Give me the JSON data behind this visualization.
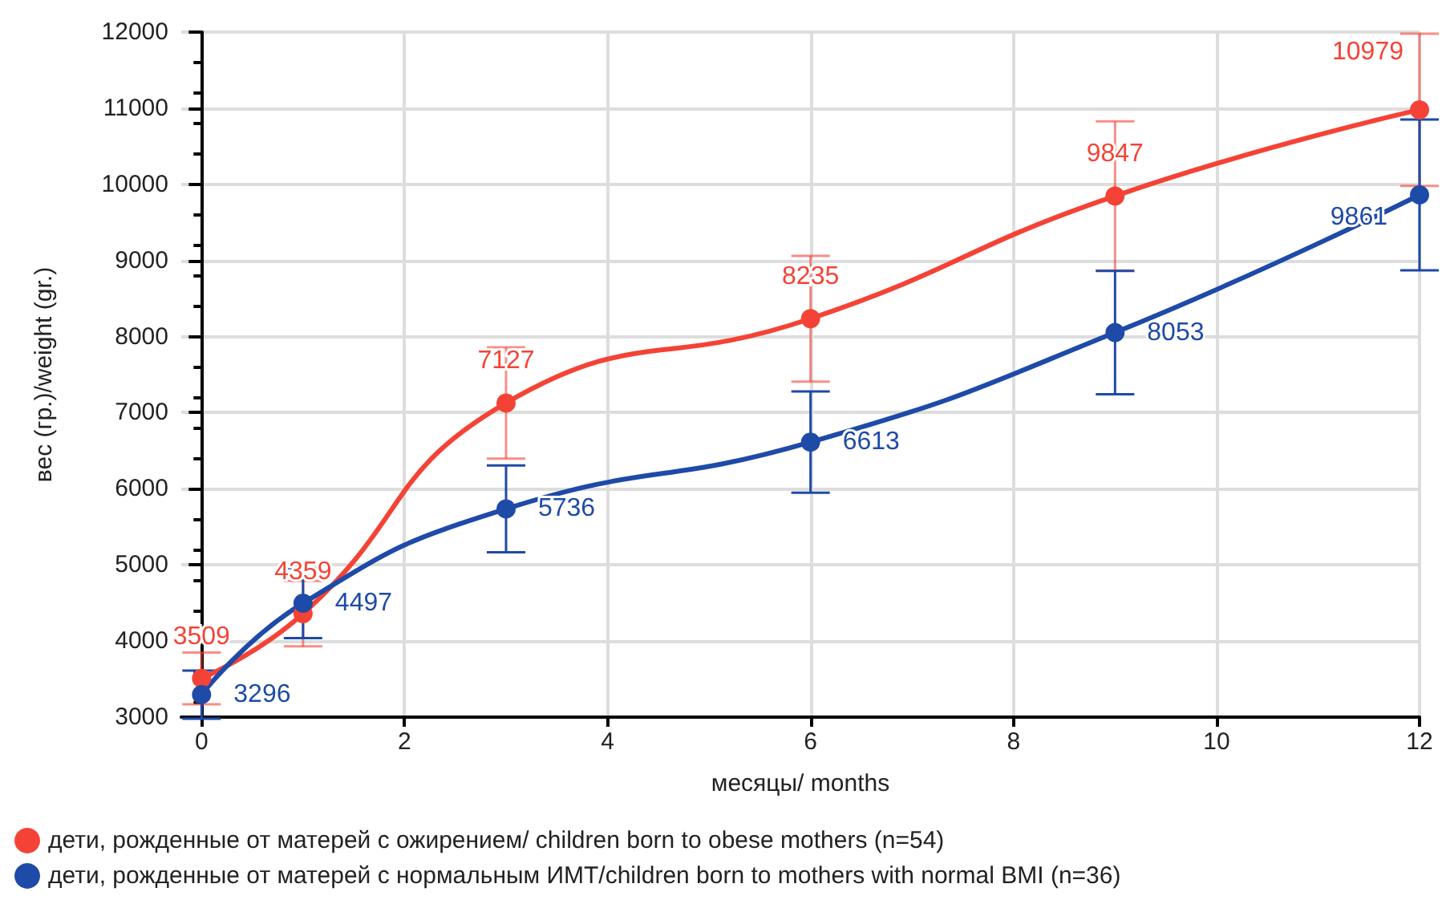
{
  "chart_data": {
    "type": "line",
    "xlabel": "месяцы/ months",
    "ylabel": "вес (гр.)/weight (gr.)",
    "x": [
      0,
      1,
      3,
      6,
      9,
      12
    ],
    "series": [
      {
        "name": "дети, рожденные от матерей с ожирением/ children born to obese mothers (n=54)",
        "color": "#f44336",
        "values": [
          3509,
          4359,
          7127,
          8235,
          9847,
          10979
        ],
        "errors": [
          340,
          430,
          730,
          826,
          980,
          1000
        ]
      },
      {
        "name": "дети, рожденные от матерей с нормальным ИМТ/children born to mothers with normal BMI (n=36)",
        "color": "#1e4aa8",
        "values": [
          3296,
          4497,
          5736,
          6613,
          8053,
          9861
        ],
        "errors": [
          316,
          460,
          570,
          665,
          810,
          990
        ]
      }
    ],
    "xlim": [
      -0.2,
      12
    ],
    "xticks": [
      0,
      2,
      4,
      6,
      8,
      10,
      12
    ],
    "ylim": [
      3000,
      12000
    ],
    "yticks": [
      3000,
      4000,
      5000,
      6000,
      7000,
      8000,
      9000,
      10000,
      11000,
      12000
    ],
    "grid": true,
    "legend": "bottom left",
    "marker": "circle",
    "line_style": "solid",
    "data_labels": true
  }
}
